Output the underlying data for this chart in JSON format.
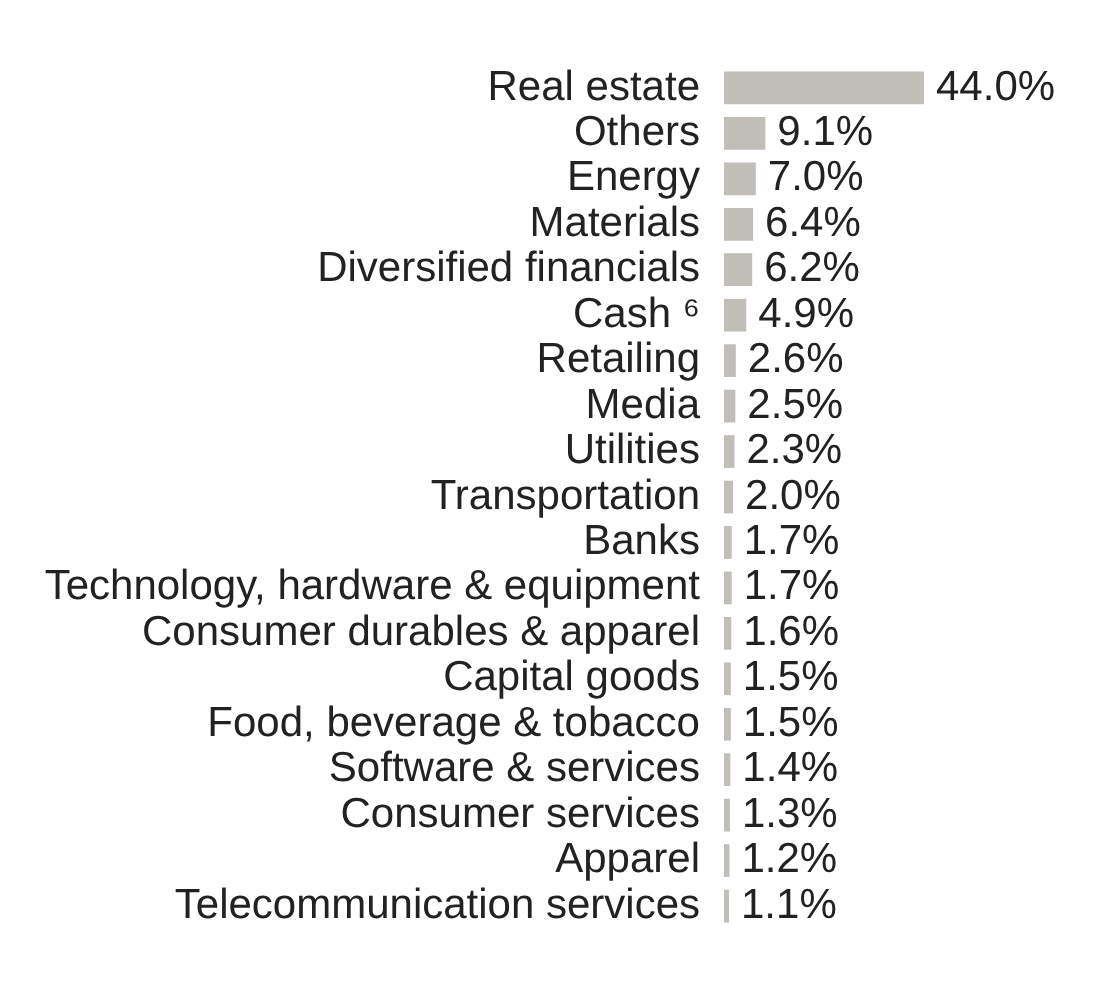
{
  "chart_data": {
    "type": "bar",
    "orientation": "horizontal",
    "grid": false,
    "legend": false,
    "categories": [
      "Real estate",
      "Others",
      "Energy",
      "Materials",
      "Diversified financials",
      "Cash ⁶",
      "Retailing",
      "Media",
      "Utilities",
      "Transportation",
      "Banks",
      "Technology, hardware & equipment",
      "Consumer durables & apparel",
      "Capital goods",
      "Food, beverage & tobacco",
      "Software & services",
      "Consumer services",
      "Apparel",
      "Telecommunication services"
    ],
    "values": [
      44.0,
      9.1,
      7.0,
      6.4,
      6.2,
      4.9,
      2.6,
      2.5,
      2.3,
      2.0,
      1.7,
      1.7,
      1.6,
      1.5,
      1.5,
      1.4,
      1.3,
      1.2,
      1.1
    ],
    "value_labels": [
      "44.0%",
      "9.1%",
      "7.0%",
      "6.4%",
      "6.2%",
      "4.9%",
      "2.6%",
      "2.5%",
      "2.3%",
      "2.0%",
      "1.7%",
      "1.7%",
      "1.6%",
      "1.5%",
      "1.5%",
      "1.4%",
      "1.3%",
      "1.2%",
      "1.1%"
    ],
    "color": "#c1beb9"
  }
}
